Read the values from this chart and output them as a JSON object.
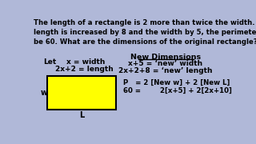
{
  "bg_color": "#b0b8d8",
  "title_lines": [
    "The length of a rectangle is 2 more than twice the width. If the",
    "length is increased by 8 and the width by 5, the perimeter will",
    "be 60. What are the dimensions of the original rectangle?"
  ],
  "let_label": "Let",
  "x_width": "x = width",
  "length_eq": "2x+2 = length",
  "new_dim_title": "New Dimensions",
  "new_width": "x+5 = ‘new’ width",
  "new_length": "2x+2+8 = ‘new’ length",
  "rect_fill": "#ffff00",
  "rect_stroke": "#000000",
  "w_label": "w",
  "l_label": "L",
  "p_line1": "P   = 2 [New w] + 2 [New L]",
  "p_line2": "60 =        2[x+5] + 2[2x+10]"
}
